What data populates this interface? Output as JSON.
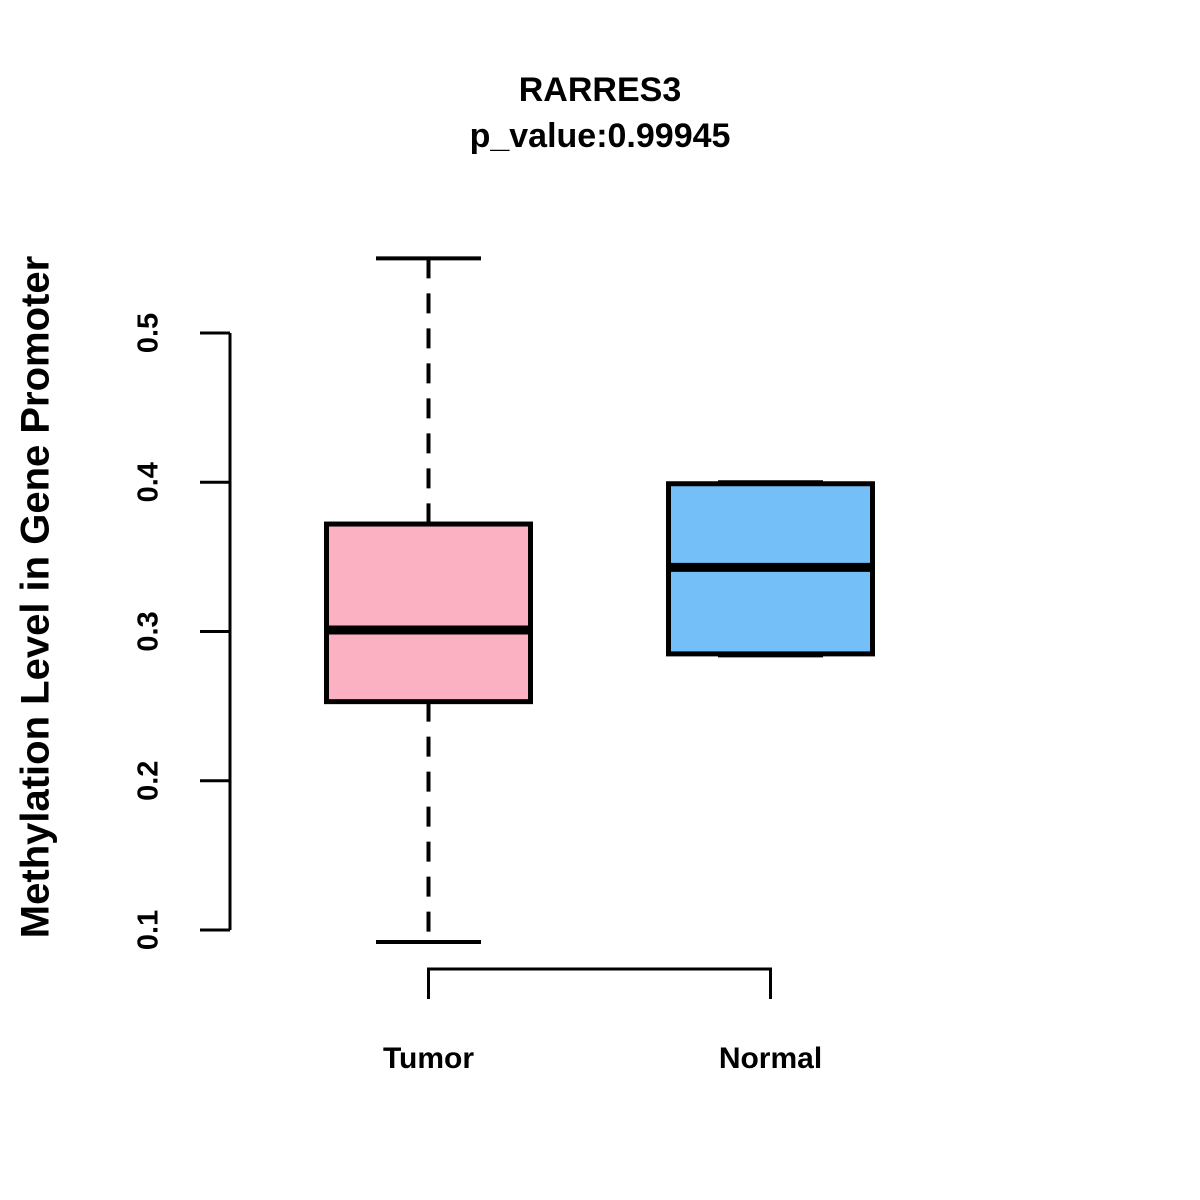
{
  "chart_data": {
    "type": "boxplot",
    "title": "RARRES3",
    "subtitle": "p_value:0.99945",
    "ylabel": "Methylation Level in Gene Promoter",
    "xlabel": "",
    "categories": [
      "Tumor",
      "Normal"
    ],
    "ytick_labels": [
      "0.5",
      "0.4",
      "0.3",
      "0.2",
      "0.1"
    ],
    "ylim": [
      0.08,
      0.56
    ],
    "grid": false,
    "legend": "none",
    "stroke_color": "#000000",
    "background_color": "#ffffff",
    "series": [
      {
        "name": "Tumor",
        "fill": "#FCB1C3",
        "min": 0.092,
        "q1": 0.253,
        "median": 0.301,
        "q3": 0.372,
        "max": 0.55,
        "whisker_style": "dashed"
      },
      {
        "name": "Normal",
        "fill": "#74BFF7",
        "min": 0.285,
        "q1": 0.285,
        "median": 0.343,
        "q3": 0.399,
        "max": 0.399,
        "whisker_style": "dashed"
      }
    ]
  }
}
